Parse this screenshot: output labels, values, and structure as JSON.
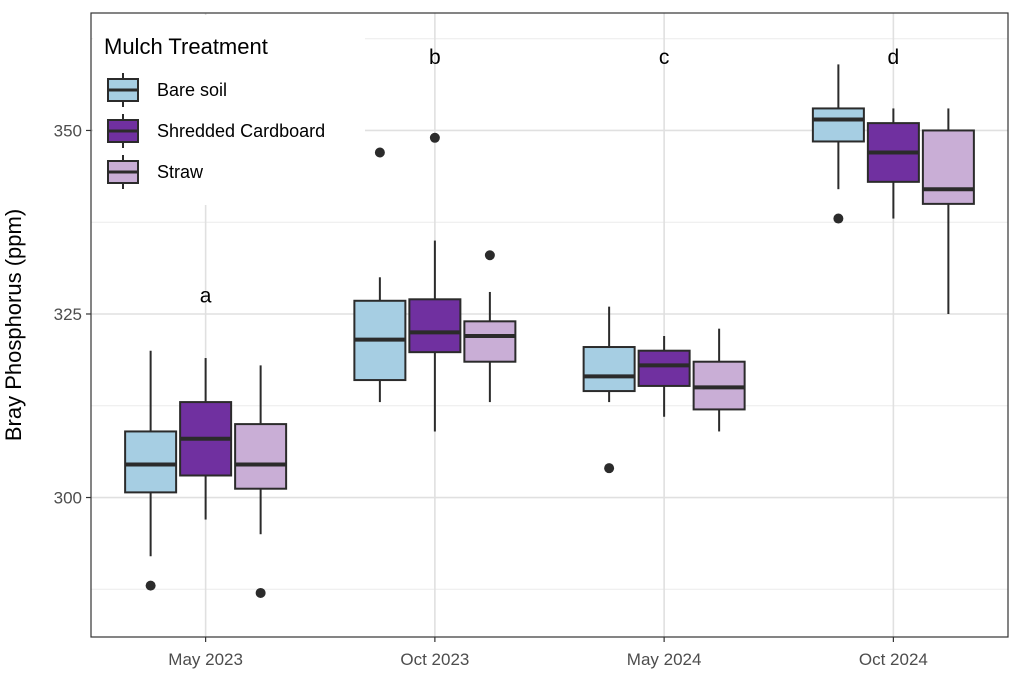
{
  "chart_data": {
    "type": "boxplot",
    "title": "",
    "xlabel": "",
    "ylabel": "Bray Phosphorus (ppm)",
    "ylim": [
      281,
      366
    ],
    "yticks": [
      300,
      325,
      350
    ],
    "grid": true,
    "legend": {
      "title": "Mulch Treatment",
      "placement": "top-left",
      "entries": [
        "Bare soil",
        "Shredded Cardboard",
        "Straw"
      ]
    },
    "categories": [
      "May 2023",
      "Oct 2023",
      "May 2024",
      "Oct 2024"
    ],
    "annotations": [
      "a",
      "b",
      "c",
      "d"
    ],
    "annotation_y": [
      327.5,
      360,
      360,
      360
    ],
    "series": [
      {
        "name": "Bare soil",
        "color": "#a6cee3",
        "boxes": [
          {
            "whisker_low": 292,
            "q1": 300.7,
            "median": 304.5,
            "q3": 309,
            "whisker_high": 320,
            "outliers": [
              288
            ]
          },
          {
            "whisker_low": 313,
            "q1": 316,
            "median": 321.5,
            "q3": 326.8,
            "whisker_high": 330,
            "outliers": [
              347
            ]
          },
          {
            "whisker_low": 313,
            "q1": 314.5,
            "median": 316.5,
            "q3": 320.5,
            "whisker_high": 326,
            "outliers": [
              304
            ]
          },
          {
            "whisker_low": 342,
            "q1": 348.5,
            "median": 351.5,
            "q3": 353,
            "whisker_high": 359,
            "outliers": [
              338
            ]
          }
        ]
      },
      {
        "name": "Shredded Cardboard",
        "color": "#7030a0",
        "boxes": [
          {
            "whisker_low": 297,
            "q1": 303,
            "median": 308,
            "q3": 313,
            "whisker_high": 319,
            "outliers": []
          },
          {
            "whisker_low": 309,
            "q1": 319.8,
            "median": 322.5,
            "q3": 327,
            "whisker_high": 335,
            "outliers": [
              349
            ]
          },
          {
            "whisker_low": 311,
            "q1": 315.2,
            "median": 318,
            "q3": 320,
            "whisker_high": 322,
            "outliers": []
          },
          {
            "whisker_low": 338,
            "q1": 343,
            "median": 347,
            "q3": 351,
            "whisker_high": 353,
            "outliers": []
          }
        ]
      },
      {
        "name": "Straw",
        "color": "#c9aed6",
        "boxes": [
          {
            "whisker_low": 295,
            "q1": 301.2,
            "median": 304.5,
            "q3": 310,
            "whisker_high": 318,
            "outliers": [
              287
            ]
          },
          {
            "whisker_low": 313,
            "q1": 318.5,
            "median": 322,
            "q3": 324,
            "whisker_high": 328,
            "outliers": [
              333
            ]
          },
          {
            "whisker_low": 309,
            "q1": 312,
            "median": 315,
            "q3": 318.5,
            "whisker_high": 323,
            "outliers": []
          },
          {
            "whisker_low": 325,
            "q1": 340,
            "median": 342,
            "q3": 350,
            "whisker_high": 353,
            "outliers": []
          }
        ]
      }
    ]
  }
}
